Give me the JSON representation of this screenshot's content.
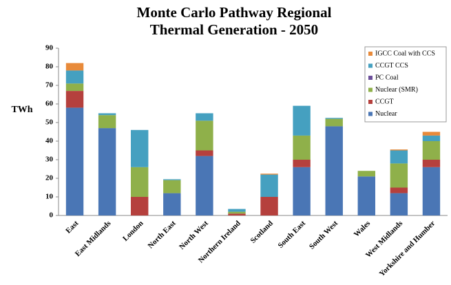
{
  "chart_data": {
    "type": "stacked_bar",
    "title": "Monte Carlo Pathway Regional Thermal Generation - 2050",
    "y_label": "TWh",
    "categories": [
      "East",
      "East Midlands",
      "London",
      "North East",
      "North West",
      "Northern Ireland",
      "Scotland",
      "South East",
      "South West",
      "Wales",
      "West Midlands",
      "Yorkshire and Humber"
    ],
    "series": [
      {
        "name": "Nuclear",
        "color": "#4a76b5",
        "values": [
          58,
          47,
          0,
          12,
          32,
          0,
          0,
          26,
          48,
          21,
          12,
          26
        ]
      },
      {
        "name": "CCGT",
        "color": "#b5403d",
        "values": [
          9,
          0,
          10,
          0,
          3,
          1,
          10,
          4,
          0,
          0,
          3,
          4
        ]
      },
      {
        "name": "Nuclear (SMR)",
        "color": "#8fb04a",
        "values": [
          4,
          7,
          16,
          7,
          16,
          1,
          0,
          13,
          4,
          3,
          13,
          10
        ]
      },
      {
        "name": "PC Coal",
        "color": "#6c4f9a",
        "values": [
          0,
          0,
          0,
          0,
          0,
          0,
          0,
          0,
          0,
          0,
          0,
          0
        ]
      },
      {
        "name": "CCGT CCS",
        "color": "#45a0c0",
        "values": [
          7,
          1,
          20,
          0.5,
          4,
          1.5,
          12,
          16,
          0.5,
          0,
          7,
          3
        ]
      },
      {
        "name": "IGCC Coal with CCS",
        "color": "#e88a3a",
        "values": [
          4,
          0,
          0,
          0,
          0,
          0,
          0.5,
          0,
          0,
          0,
          0.5,
          2
        ]
      }
    ],
    "ylim": [
      0,
      90
    ],
    "yticks": [
      0,
      10,
      20,
      30,
      40,
      50,
      60,
      70,
      80,
      90
    ],
    "grid": false,
    "legend": "upper right"
  }
}
